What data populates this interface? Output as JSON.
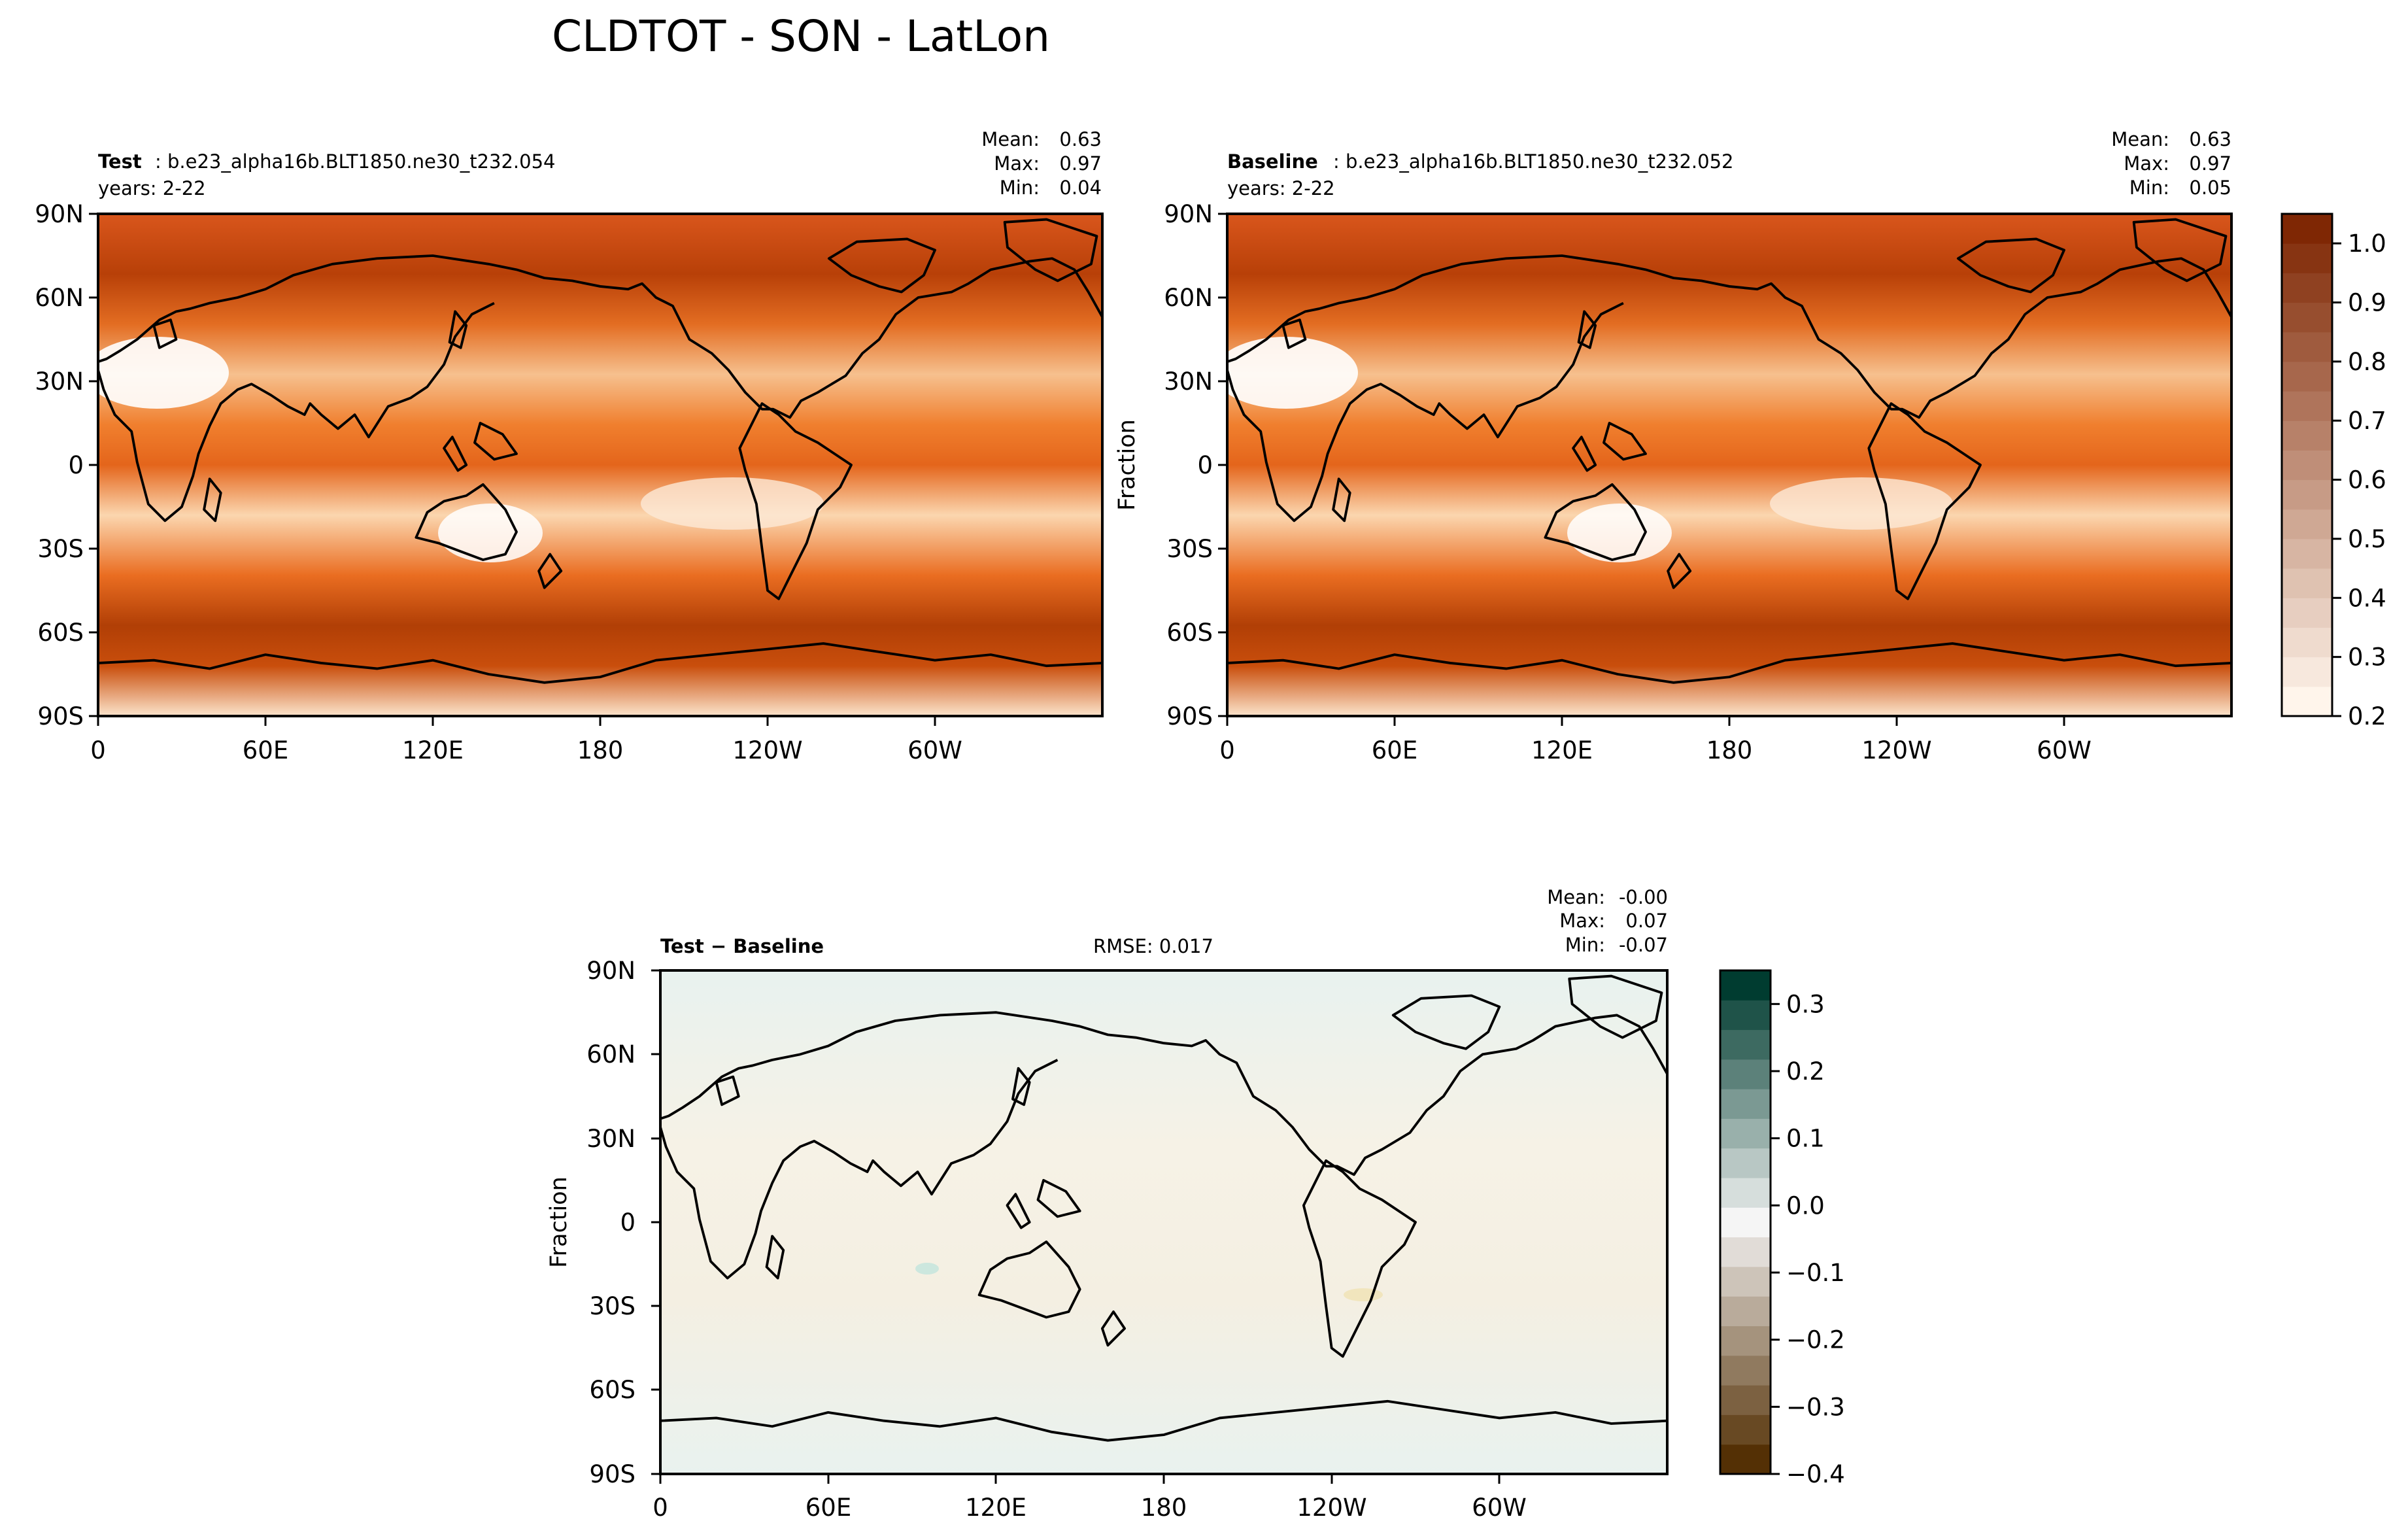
{
  "figure_title": "CLDTOT - SON - LatLon",
  "colors": {
    "sequential_low": "#fff5eb",
    "sequential_high": "#7f2704",
    "diverging_negative": "#543005",
    "diverging_zero": "#f5f5f5",
    "diverging_positive": "#003c30",
    "coastline": "#000000"
  },
  "chart_data": [
    {
      "type": "heatmap",
      "panel": "test",
      "label": "Test",
      "case": ": b.e23_alpha16b.BLT1850.ne30_t232.054",
      "years": "years: 2-22",
      "stats": {
        "mean_label": "Mean:",
        "mean": "0.63",
        "max_label": "Max:",
        "max": "0.97",
        "min_label": "Min:",
        "min": "0.04"
      },
      "x_ticks": [
        "0",
        "60E",
        "120E",
        "180",
        "120W",
        "60W"
      ],
      "y_ticks": [
        "90N",
        "60N",
        "30N",
        "0",
        "30S",
        "60S",
        "90S"
      ],
      "xlim": [
        0,
        360
      ],
      "ylim": [
        -90,
        90
      ],
      "colormap": "Oranges"
    },
    {
      "type": "heatmap",
      "panel": "baseline",
      "label": "Baseline",
      "case": ": b.e23_alpha16b.BLT1850.ne30_t232.052",
      "years": "years: 2-22",
      "ylabel": "Fraction",
      "stats": {
        "mean_label": "Mean:",
        "mean": "0.63",
        "max_label": "Max:",
        "max": "0.97",
        "min_label": "Min:",
        "min": "0.05"
      },
      "x_ticks": [
        "0",
        "60E",
        "120E",
        "180",
        "120W",
        "60W"
      ],
      "y_ticks": [
        "90N",
        "60N",
        "30N",
        "0",
        "30S",
        "60S",
        "90S"
      ],
      "xlim": [
        0,
        360
      ],
      "ylim": [
        -90,
        90
      ],
      "colormap": "Oranges",
      "colorbar": {
        "ticks": [
          "0.2",
          "0.3",
          "0.4",
          "0.5",
          "0.6",
          "0.7",
          "0.8",
          "0.9",
          "1.0"
        ],
        "range": [
          0.2,
          1.05
        ]
      }
    },
    {
      "type": "heatmap",
      "panel": "difference",
      "label": "Test − Baseline",
      "rmse": "RMSE: 0.017",
      "ylabel": "Fraction",
      "stats": {
        "mean_label": "Mean:",
        "mean": "-0.00",
        "max_label": "Max:",
        "max": "0.07",
        "min_label": "Min:",
        "min": "-0.07"
      },
      "x_ticks": [
        "0",
        "60E",
        "120E",
        "180",
        "120W",
        "60W"
      ],
      "y_ticks": [
        "90N",
        "60N",
        "30N",
        "0",
        "30S",
        "60S",
        "90S"
      ],
      "xlim": [
        0,
        360
      ],
      "ylim": [
        -90,
        90
      ],
      "colormap": "BrBG",
      "colorbar": {
        "ticks": [
          "0.3",
          "0.2",
          "0.1",
          "0.0",
          "−0.1",
          "−0.2",
          "−0.3",
          "−0.4"
        ],
        "range": [
          -0.4,
          0.35
        ]
      }
    }
  ]
}
